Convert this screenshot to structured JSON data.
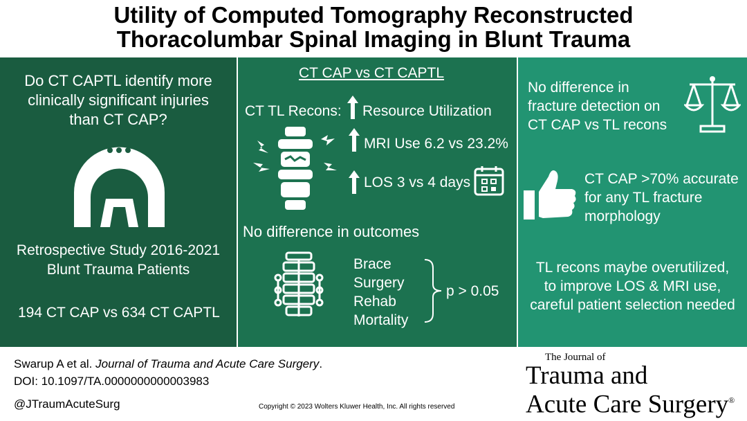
{
  "title": {
    "line1": "Utility of Computed Tomography Reconstructed",
    "line2": "Thoracolumbar Spinal Imaging in Blunt Trauma"
  },
  "left_panel": {
    "question_line1": "Do CT CAPTL identify more",
    "question_line2": "clinically significant injuries",
    "question_line3": "than CT CAP?",
    "study_line1": "Retrospective Study 2016-2021",
    "study_line2": "Blunt Trauma Patients",
    "counts": "194 CT CAP vs 634 CT CAPTL",
    "icon": "ct-scanner-icon"
  },
  "middle_panel": {
    "heading": "CT CAP vs CT CAPTL",
    "recons_label": "CT TL Recons:",
    "resource": "Resource Utilization",
    "mri": "MRI Use 6.2 vs 23.2%",
    "los": "LOS 3 vs 4 days",
    "no_diff": "No difference in outcomes",
    "outcomes": [
      "Brace",
      "Surgery",
      "Rehab",
      "Mortality"
    ],
    "pvalue": "p > 0.05",
    "icons": [
      "fractured-spine-icon",
      "calendar-icon",
      "braced-spine-icon",
      "up-arrow-icon"
    ]
  },
  "right_panel": {
    "fracture_line1": "No difference in",
    "fracture_line2": "fracture detection on",
    "fracture_line3": "CT CAP vs TL recons",
    "accuracy_line1": "CT CAP >70% accurate",
    "accuracy_line2": "for any TL fracture",
    "accuracy_line3": "morphology",
    "conclusion_line1": "TL recons maybe overutilized,",
    "conclusion_line2": "to improve LOS & MRI use,",
    "conclusion_line3": "careful patient selection needed",
    "icons": [
      "scale-icon",
      "thumbs-up-icon"
    ]
  },
  "footer": {
    "citation_authors": "Swarup A et al. ",
    "citation_journal": "Journal of Trauma and Acute Care Surgery",
    "citation_end": ".",
    "doi": "DOI: 10.1097/TA.0000000000003983",
    "handle": "@JTraumAcuteSurg",
    "copyright": "Copyright © 2023  Wolters Kluwer Health, Inc. All rights reserved",
    "logo_small": "The Journal of",
    "logo_line1": "Trauma and",
    "logo_line2": "Acute Care Surgery",
    "logo_mark": "®"
  },
  "colors": {
    "left_bg": "#1a5c40",
    "middle_bg": "#1c7250",
    "right_bg": "#229472",
    "text_on_panel": "#ffffff"
  }
}
